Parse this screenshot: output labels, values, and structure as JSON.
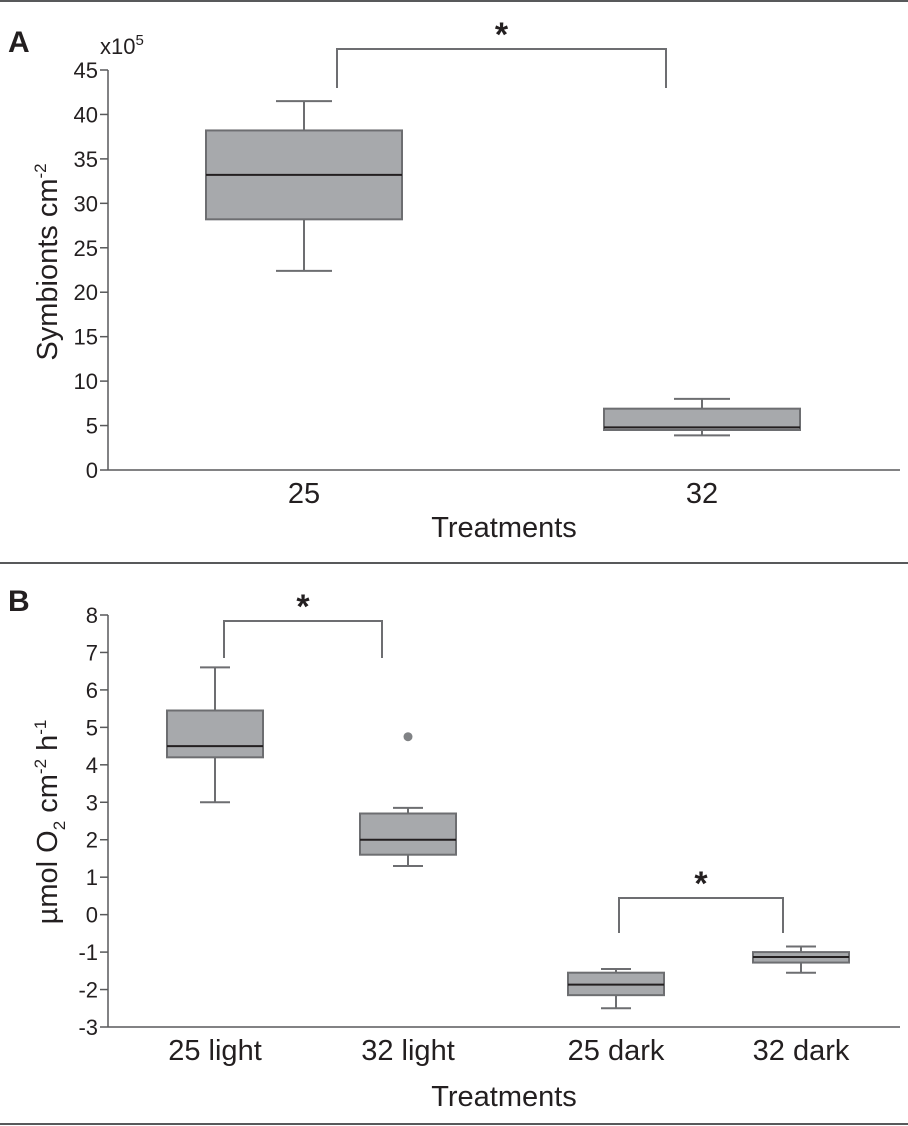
{
  "chart_data": [
    {
      "type": "box",
      "panel": "A",
      "xlabel": "Treatments",
      "ylabel": "Symbionts cm",
      "ylabel_sup": "-2",
      "y_multiplier": {
        "base": "x10",
        "exp": "5"
      },
      "ylim": [
        0,
        45
      ],
      "yticks": [
        0,
        5,
        10,
        15,
        20,
        25,
        30,
        35,
        40,
        45
      ],
      "categories": [
        "25",
        "32"
      ],
      "boxes": [
        {
          "category": "25",
          "whisker_low": 22.4,
          "q1": 28.2,
          "median": 33.2,
          "q3": 38.2,
          "whisker_high": 41.5
        },
        {
          "category": "32",
          "whisker_low": 3.9,
          "q1": 4.5,
          "median": 4.8,
          "q3": 6.9,
          "whisker_high": 8.0
        }
      ],
      "significance": [
        {
          "from": "25",
          "to": "32",
          "label": "*"
        }
      ]
    },
    {
      "type": "box",
      "panel": "B",
      "xlabel": "Treatments",
      "ylabel": {
        "a": "µmol O",
        "b": "2",
        "c": " cm",
        "d": "-2",
        "e": " h",
        "f": "-1"
      },
      "ylim": [
        -3,
        8
      ],
      "yticks": [
        -3,
        -2,
        -1,
        0,
        1,
        2,
        3,
        4,
        5,
        6,
        7,
        8
      ],
      "categories": [
        "25 light",
        "32 light",
        "25 dark",
        "32 dark"
      ],
      "boxes": [
        {
          "category": "25 light",
          "whisker_low": 3.0,
          "q1": 4.2,
          "median": 4.5,
          "q3": 5.45,
          "whisker_high": 6.6,
          "outliers": []
        },
        {
          "category": "32 light",
          "whisker_low": 1.3,
          "q1": 1.6,
          "median": 2.0,
          "q3": 2.7,
          "whisker_high": 2.85,
          "outliers": [
            4.75
          ]
        },
        {
          "category": "25 dark",
          "whisker_low": -2.5,
          "q1": -2.15,
          "median": -1.87,
          "q3": -1.55,
          "whisker_high": -1.45,
          "outliers": []
        },
        {
          "category": "32 dark",
          "whisker_low": -1.55,
          "q1": -1.28,
          "median": -1.13,
          "q3": -1.0,
          "whisker_high": -0.85,
          "outliers": []
        }
      ],
      "significance": [
        {
          "from": "25 light",
          "to": "32 light",
          "label": "*"
        },
        {
          "from": "25 dark",
          "to": "32 dark",
          "label": "*"
        }
      ]
    }
  ]
}
